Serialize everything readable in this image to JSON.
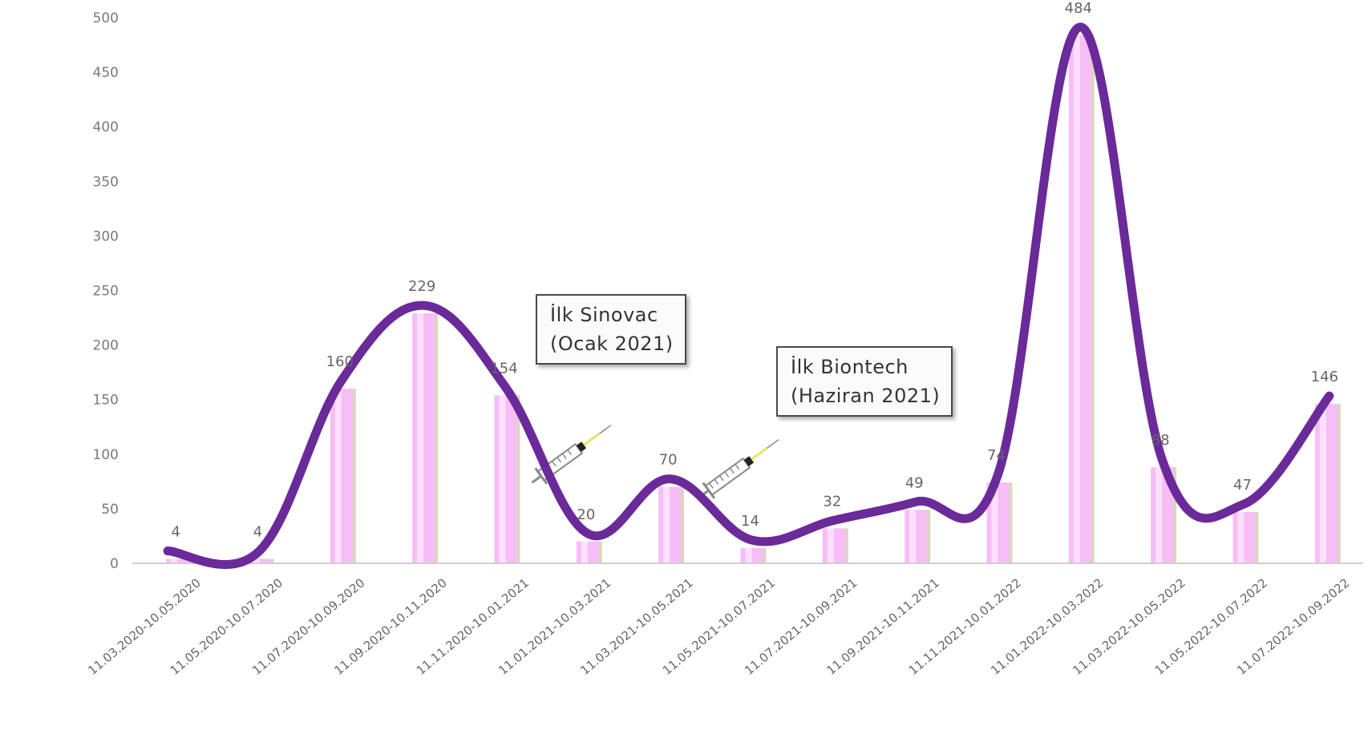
{
  "chart_data": {
    "type": "bar",
    "categories": [
      "11.03.2020-10.05.2020",
      "11.05.2020-10.07.2020",
      "11.07.2020-10.09.2020",
      "11.09.2020-10.11.2020",
      "11.11.2020-10.01.2021",
      "11.01.2021-10.03.2021",
      "11.03.2021-10.05.2021",
      "11.05.2021-10.07.2021",
      "11.07.2021-10.09.2021",
      "11.09.2021-10.11.2021",
      "11.11.2021-10.01.2022",
      "11.01.2022-10.03.2022",
      "11.03.2022-10.05.2022",
      "11.05.2022-10.07.2022",
      "11.07.2022-10.09.2022"
    ],
    "values": [
      4,
      4,
      160,
      229,
      154,
      20,
      70,
      14,
      32,
      49,
      74,
      484,
      88,
      47,
      146
    ],
    "data_labels": [
      "4",
      "4",
      "160",
      "229",
      "154",
      "20",
      "70",
      "14",
      "32",
      "49",
      "74",
      "484",
      "88",
      "47",
      "146"
    ],
    "yticks": [
      0,
      50,
      100,
      150,
      200,
      250,
      300,
      350,
      400,
      450,
      500
    ],
    "ylim": [
      0,
      500
    ],
    "grid": false,
    "legend": "none",
    "annotations": [
      {
        "line1": "İlk Sinovac",
        "line2": "(Ocak 2021)"
      },
      {
        "line1": "İlk Biontech",
        "line2": "(Haziran 2021)"
      }
    ],
    "colors": {
      "bar_fill": "#f6bdf6",
      "bar_highlight": "#ffe6ff",
      "bar_shadow": "#d8d2b8",
      "trend_line": "#6a2a9a",
      "axis": "#cfcfcf",
      "syringe": "#8a8a8a",
      "needle_tip": "#e9e36b"
    }
  }
}
